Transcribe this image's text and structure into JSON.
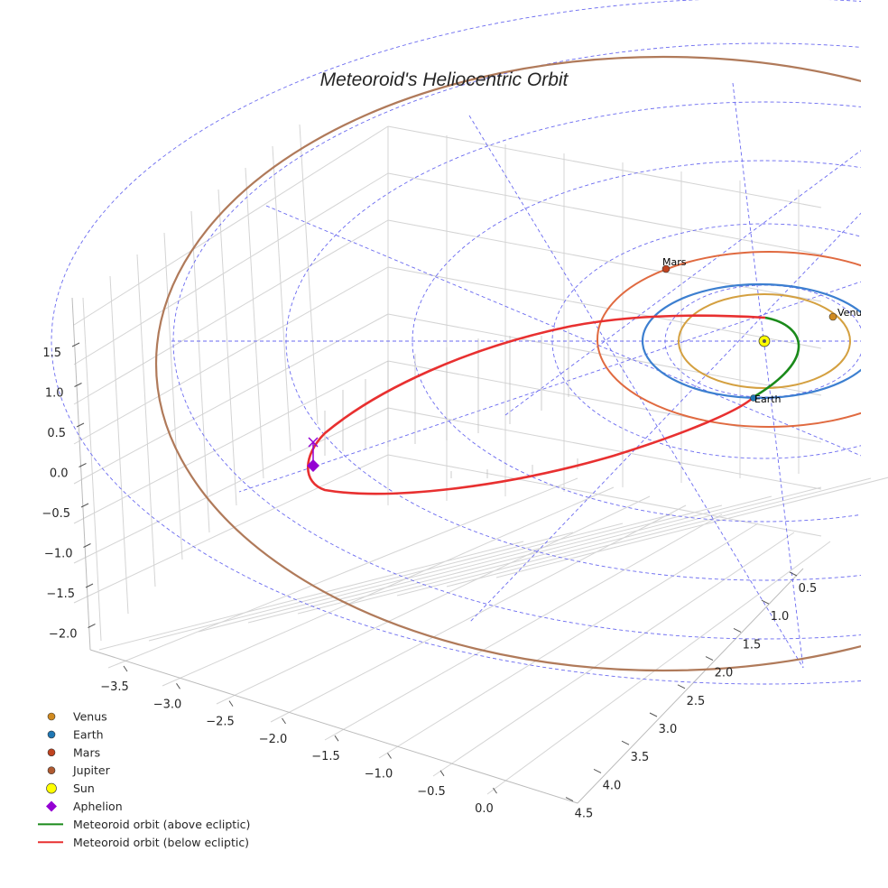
{
  "chart_data": {
    "type": "line",
    "projection": "3d",
    "title": "Meteoroid's Heliocentric Orbit",
    "axes": {
      "x": {
        "ticks": [
          "−3.5",
          "−3.0",
          "−2.5",
          "−2.0",
          "−1.5",
          "−1.0",
          "−0.5",
          "0.0"
        ]
      },
      "y": {
        "ticks": [
          "0.5",
          "1.0",
          "1.5",
          "2.0",
          "2.5",
          "3.0",
          "3.5",
          "4.0",
          "4.5"
        ]
      },
      "z": {
        "ticks": [
          "1.5",
          "1.0",
          "0.5",
          "0.0",
          "−0.5",
          "−1.0",
          "−1.5",
          "−2.0"
        ]
      }
    },
    "planets": [
      {
        "name": "Venus",
        "color": "#d08a20",
        "orbit_color": "#d4a040",
        "orbit_radius_au": 0.72
      },
      {
        "name": "Earth",
        "color": "#1f77b4",
        "orbit_color": "#3c7fd0",
        "orbit_radius_au": 1.0
      },
      {
        "name": "Mars",
        "color": "#c0431f",
        "orbit_color": "#e06a40",
        "orbit_radius_au": 1.52
      },
      {
        "name": "Jupiter",
        "color": "#b05a30",
        "orbit_color": "#b07a5a",
        "orbit_radius_au": 5.2
      }
    ],
    "sun": {
      "name": "Sun",
      "color": "#ffff00"
    },
    "aphelion": {
      "name": "Aphelion",
      "color": "#9400d3"
    },
    "meteoroid": {
      "above_label": "Meteoroid orbit (above ecliptic)",
      "above_color": "#1a8a1a",
      "below_label": "Meteoroid orbit (below ecliptic)",
      "below_color": "#e83030"
    },
    "legend": [
      "Venus",
      "Earth",
      "Mars",
      "Jupiter",
      "Sun",
      "Aphelion",
      "Meteoroid orbit (above ecliptic)",
      "Meteoroid orbit (below ecliptic)"
    ],
    "legend_position": "bottom-left"
  }
}
